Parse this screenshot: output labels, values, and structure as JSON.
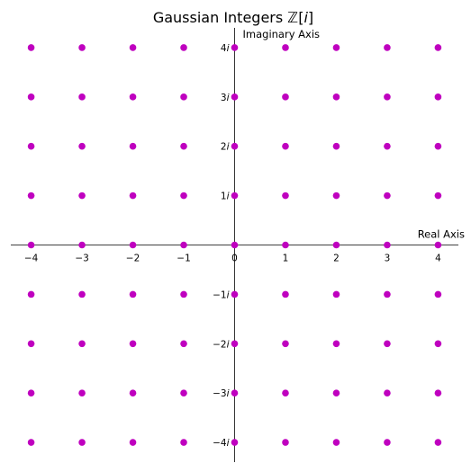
{
  "chart_data": {
    "type": "scatter",
    "title": "Gaussian Integers ℤ[i]",
    "title_main": "Gaussian Integers ",
    "title_set": "ℤ",
    "title_bracket_open": "[",
    "title_var": "i",
    "title_bracket_close": "]",
    "xlabel": "Real Axis",
    "ylabel": "Imaginary Axis",
    "xlim": [
      -4.4,
      4.4
    ],
    "ylim": [
      -4.4,
      4.4
    ],
    "grid": false,
    "spines": "centered",
    "point_color": "#bf00bf",
    "x_ticks": [
      {
        "value": -4,
        "label": "−4"
      },
      {
        "value": -3,
        "label": "−3"
      },
      {
        "value": -2,
        "label": "−2"
      },
      {
        "value": -1,
        "label": "−1"
      },
      {
        "value": 0,
        "label": "0"
      },
      {
        "value": 1,
        "label": "1"
      },
      {
        "value": 2,
        "label": "2"
      },
      {
        "value": 3,
        "label": "3"
      },
      {
        "value": 4,
        "label": "4"
      }
    ],
    "y_ticks": [
      {
        "value": 4,
        "label": "4",
        "unit": "i"
      },
      {
        "value": 3,
        "label": "3",
        "unit": "i"
      },
      {
        "value": 2,
        "label": "2",
        "unit": "i"
      },
      {
        "value": 1,
        "label": "1",
        "unit": "i"
      },
      {
        "value": -1,
        "label": "−1",
        "unit": "i"
      },
      {
        "value": -2,
        "label": "−2",
        "unit": "i"
      },
      {
        "value": -3,
        "label": "−3",
        "unit": "i"
      },
      {
        "value": -4,
        "label": "−4",
        "unit": "i"
      }
    ],
    "points": {
      "x_values": [
        -4,
        -3,
        -2,
        -1,
        0,
        1,
        2,
        3,
        4
      ],
      "y_values": [
        -4,
        -3,
        -2,
        -1,
        0,
        1,
        2,
        3,
        4
      ],
      "description": "all integer lattice points (a, b) with -4 <= a, b <= 4"
    }
  }
}
